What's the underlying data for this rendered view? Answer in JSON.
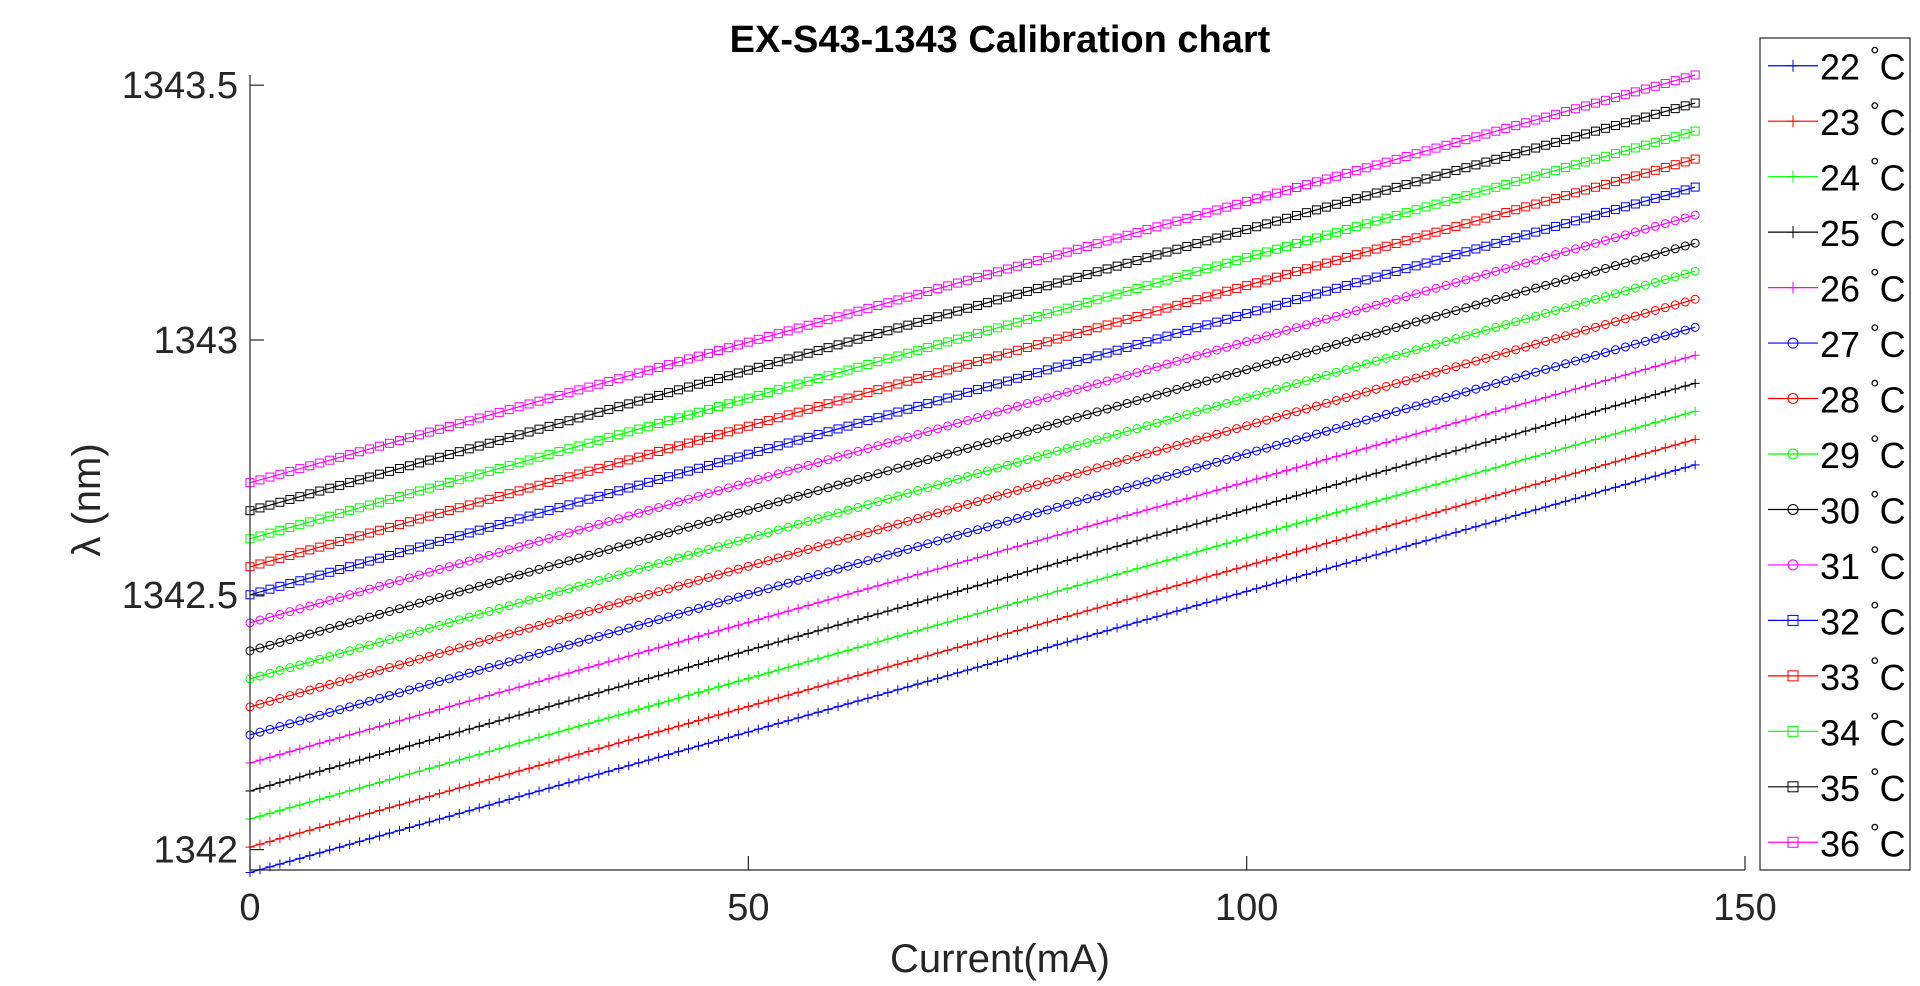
{
  "chart_data": {
    "type": "line",
    "title": "EX-S43-1343 Calibration chart",
    "xlabel": "Current(mA)",
    "ylabel": "λ (nm)",
    "xlim": [
      0,
      150
    ],
    "ylim": [
      1341.96,
      1343.52
    ],
    "xticks": [
      0,
      50,
      100,
      150
    ],
    "xtick_labels": [
      "0",
      "50",
      "100",
      "150"
    ],
    "yticks": [
      1342,
      1342.5,
      1343,
      1343.5
    ],
    "ytick_labels": [
      "1342",
      "1342.5",
      "1343",
      "1343.5"
    ],
    "grid": false,
    "legend_position": "outside-right",
    "x": {
      "start": 0,
      "end": 145,
      "step": 1
    },
    "series": [
      {
        "name": "22 °C",
        "temp": "22",
        "color": "#0000ff",
        "marker": "plus",
        "y_start": 1341.955,
        "y_end": 1342.755
      },
      {
        "name": "23 °C",
        "temp": "23",
        "color": "#ff0000",
        "marker": "plus",
        "y_start": 1342.005,
        "y_end": 1342.805
      },
      {
        "name": "24 °C",
        "temp": "24",
        "color": "#00ff00",
        "marker": "plus",
        "y_start": 1342.06,
        "y_end": 1342.86
      },
      {
        "name": "25 °C",
        "temp": "25",
        "color": "#000000",
        "marker": "plus",
        "y_start": 1342.115,
        "y_end": 1342.915
      },
      {
        "name": "26 °C",
        "temp": "26",
        "color": "#ff00ff",
        "marker": "plus",
        "y_start": 1342.17,
        "y_end": 1342.97
      },
      {
        "name": "27 °C",
        "temp": "27",
        "color": "#0000ff",
        "marker": "circle",
        "y_start": 1342.225,
        "y_end": 1343.025
      },
      {
        "name": "28 °C",
        "temp": "28",
        "color": "#ff0000",
        "marker": "circle",
        "y_start": 1342.28,
        "y_end": 1343.08
      },
      {
        "name": "29 °C",
        "temp": "29",
        "color": "#00ff00",
        "marker": "circle",
        "y_start": 1342.335,
        "y_end": 1343.135
      },
      {
        "name": "30 °C",
        "temp": "30",
        "color": "#000000",
        "marker": "circle",
        "y_start": 1342.39,
        "y_end": 1343.19
      },
      {
        "name": "31 °C",
        "temp": "31",
        "color": "#ff00ff",
        "marker": "circle",
        "y_start": 1342.445,
        "y_end": 1343.245
      },
      {
        "name": "32 °C",
        "temp": "32",
        "color": "#0000ff",
        "marker": "square",
        "y_start": 1342.5,
        "y_end": 1343.3
      },
      {
        "name": "33 °C",
        "temp": "33",
        "color": "#ff0000",
        "marker": "square",
        "y_start": 1342.555,
        "y_end": 1343.355
      },
      {
        "name": "34 °C",
        "temp": "34",
        "color": "#00ff00",
        "marker": "square",
        "y_start": 1342.61,
        "y_end": 1343.41
      },
      {
        "name": "35 °C",
        "temp": "35",
        "color": "#000000",
        "marker": "square",
        "y_start": 1342.665,
        "y_end": 1343.465
      },
      {
        "name": "36 °C",
        "temp": "36",
        "color": "#ff00ff",
        "marker": "square",
        "y_start": 1342.72,
        "y_end": 1343.52
      }
    ]
  }
}
